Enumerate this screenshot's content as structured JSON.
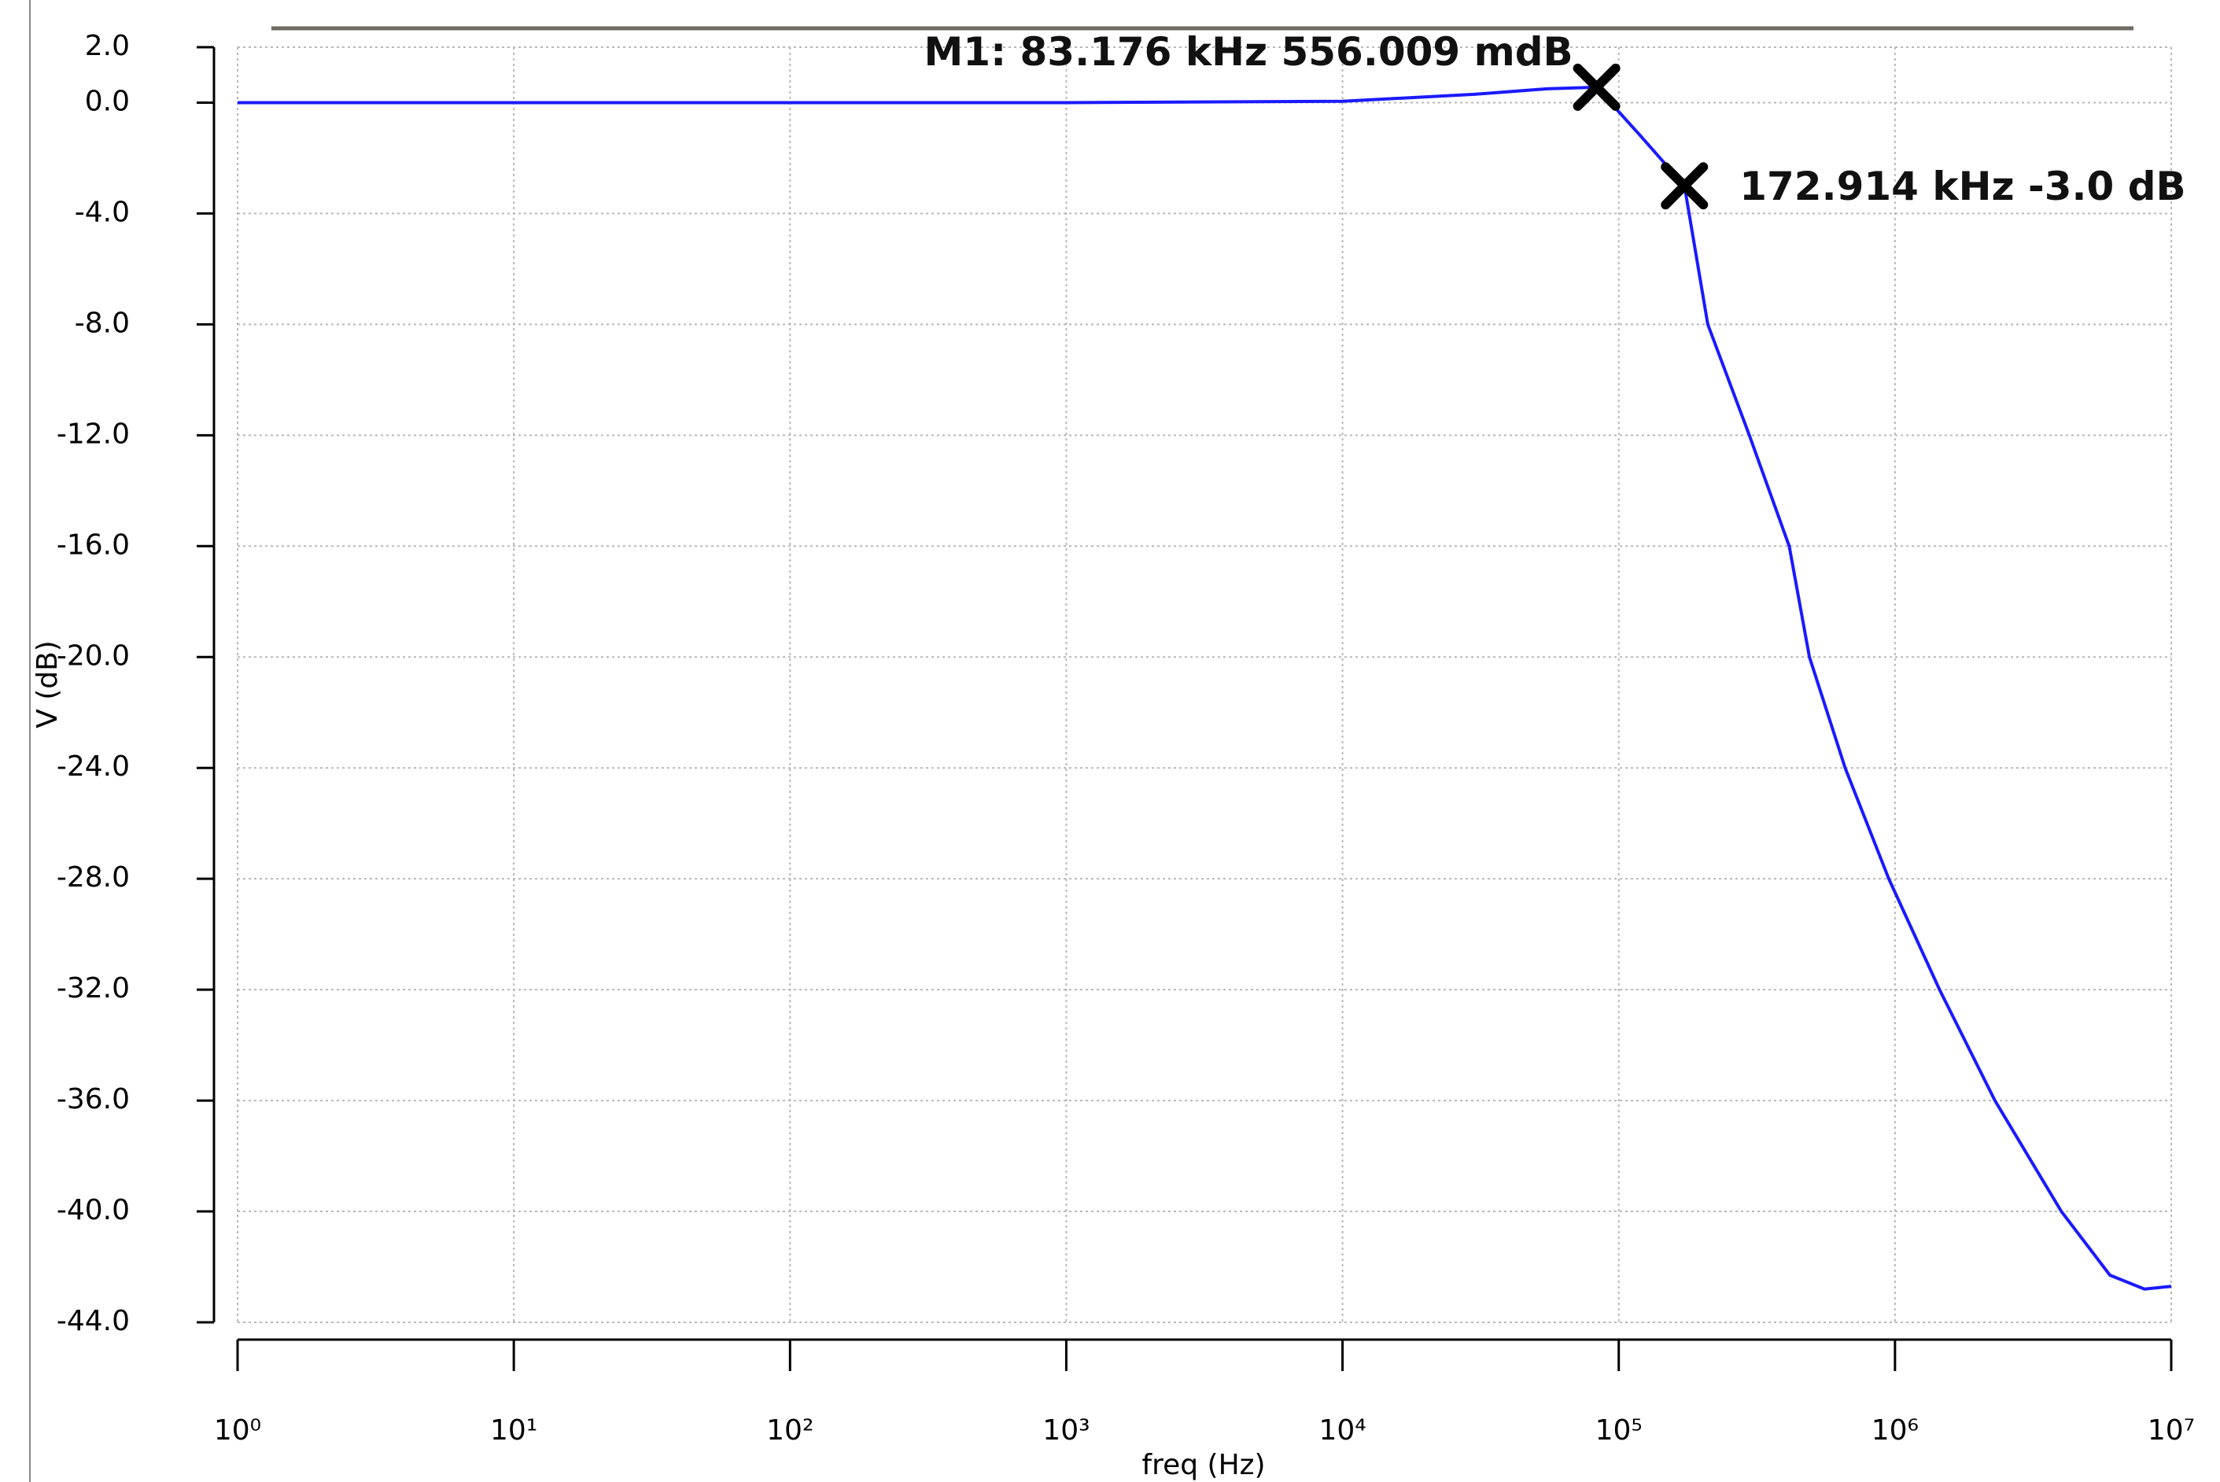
{
  "chart_data": {
    "type": "line",
    "xlabel": "freq (Hz)",
    "ylabel": "V (dB)",
    "log_x": true,
    "grid": true,
    "color": "#1a1aff",
    "x": [
      1,
      10,
      100,
      1000,
      10000,
      30000,
      55000,
      83176,
      120000,
      172914,
      210000,
      297000,
      414000,
      490000,
      660000,
      950000,
      1450000,
      2300000,
      4000000,
      6000000,
      8000000,
      10000000
    ],
    "values": [
      0,
      0,
      0,
      0,
      0.05,
      0.3,
      0.5,
      0.556,
      -1.2,
      -3.0,
      -8,
      -12,
      -16,
      -20,
      -24,
      -28,
      -32,
      -36,
      -40,
      -42.3,
      -42.8,
      -42.7
    ],
    "xlim": [
      1,
      10000000
    ],
    "xticks": [
      {
        "value": 1,
        "label": "10⁰"
      },
      {
        "value": 10,
        "label": "10¹"
      },
      {
        "value": 100,
        "label": "10²"
      },
      {
        "value": 1000,
        "label": "10³"
      },
      {
        "value": 10000,
        "label": "10⁴"
      },
      {
        "value": 100000,
        "label": "10⁵"
      },
      {
        "value": 1000000,
        "label": "10⁶"
      },
      {
        "value": 10000000,
        "label": "10⁷"
      }
    ],
    "ylim": [
      -44,
      2
    ],
    "yticks": [
      {
        "value": 2,
        "label": "2.0"
      },
      {
        "value": 0,
        "label": "0.0"
      },
      {
        "value": -4,
        "label": "-4.0"
      },
      {
        "value": -8,
        "label": "-8.0"
      },
      {
        "value": -12,
        "label": "-12.0"
      },
      {
        "value": -16,
        "label": "-16.0"
      },
      {
        "value": -20,
        "label": "-20.0"
      },
      {
        "value": -24,
        "label": "-24.0"
      },
      {
        "value": -28,
        "label": "-28.0"
      },
      {
        "value": -32,
        "label": "-32.0"
      },
      {
        "value": -36,
        "label": "-36.0"
      },
      {
        "value": -40,
        "label": "-40.0"
      },
      {
        "value": -44,
        "label": "-44.0"
      }
    ],
    "markers": [
      {
        "label": "M1: 83.176 kHz  556.009 mdB",
        "x": 83176,
        "y": 0.556009
      },
      {
        "label": "172.914 kHz  -3.0 dB",
        "x": 172914,
        "y": -3.0
      }
    ]
  }
}
